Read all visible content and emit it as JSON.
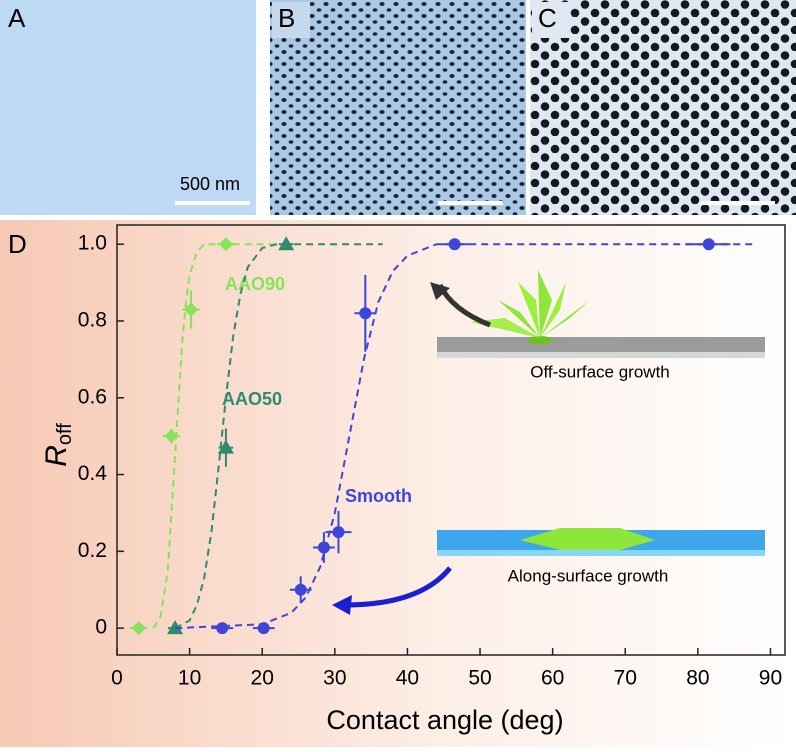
{
  "panels": [
    {
      "label": "A",
      "scale_bar": "500 nm"
    },
    {
      "label": "B"
    },
    {
      "label": "C"
    }
  ],
  "chart_data": {
    "type": "scatter",
    "panel_label": "D",
    "xlabel": "Contact angle (deg)",
    "ylabel": "R",
    "ylabel_sub": "off",
    "xlim": [
      0,
      92
    ],
    "ylim": [
      -0.07,
      1.05
    ],
    "xticks": [
      0,
      10,
      20,
      30,
      40,
      50,
      60,
      70,
      80,
      90
    ],
    "yticks": [
      0,
      0.2,
      0.4,
      0.6,
      0.8,
      {
        "value": 1,
        "label": "1.0"
      }
    ],
    "series": [
      {
        "name": "AAO90",
        "color": "#86e35a",
        "marker": "diamond",
        "x": [
          3,
          7.5,
          10.2,
          15
        ],
        "values": [
          0,
          0.5,
          0.83,
          1
        ],
        "xerr": [
          1.2,
          1.2,
          1.2,
          1.2
        ],
        "yerr": [
          0,
          0.02,
          0.05,
          0
        ],
        "fit": {
          "x": [
            5,
            6,
            7,
            7.5,
            8,
            8.5,
            9,
            9.5,
            10,
            11,
            12,
            14,
            22
          ],
          "values": [
            0,
            0.03,
            0.15,
            0.3,
            0.45,
            0.6,
            0.75,
            0.85,
            0.92,
            0.98,
            1,
            1,
            1
          ]
        }
      },
      {
        "name": "AAO50",
        "color": "#2f8a6e",
        "marker": "triangle",
        "x": [
          8,
          15,
          23.3
        ],
        "values": [
          0,
          0.47,
          1
        ],
        "xerr": [
          1,
          1,
          1
        ],
        "yerr": [
          0,
          0.05,
          0
        ],
        "fit": {
          "x": [
            8,
            10,
            11,
            12,
            13,
            14,
            15,
            16,
            17,
            18,
            20,
            22,
            36.6
          ],
          "values": [
            0,
            0.02,
            0.06,
            0.13,
            0.25,
            0.42,
            0.6,
            0.76,
            0.87,
            0.94,
            0.99,
            1,
            1
          ]
        }
      },
      {
        "name": "Smooth",
        "color": "#3e46d8",
        "marker": "circle",
        "x": [
          14.5,
          20.2,
          25.3,
          28.5,
          30.5,
          34.2,
          46.5,
          81.5
        ],
        "values": [
          0,
          0,
          0.1,
          0.21,
          0.25,
          0.82,
          1,
          1
        ],
        "xerr": [
          1.5,
          1.5,
          1.5,
          1.5,
          1.8,
          1.5,
          2,
          3
        ],
        "yerr": [
          0,
          0,
          0.035,
          0.04,
          0.055,
          0.1,
          0,
          0
        ],
        "fit": {
          "x": [
            8,
            20,
            24,
            26,
            28,
            30,
            32,
            34,
            36,
            38,
            40,
            44,
            88
          ],
          "values": [
            0,
            0.01,
            0.04,
            0.08,
            0.16,
            0.3,
            0.5,
            0.7,
            0.85,
            0.93,
            0.97,
            1,
            1
          ]
        }
      }
    ],
    "annotations": [
      "Off-surface growth",
      "Along-surface growth"
    ]
  }
}
